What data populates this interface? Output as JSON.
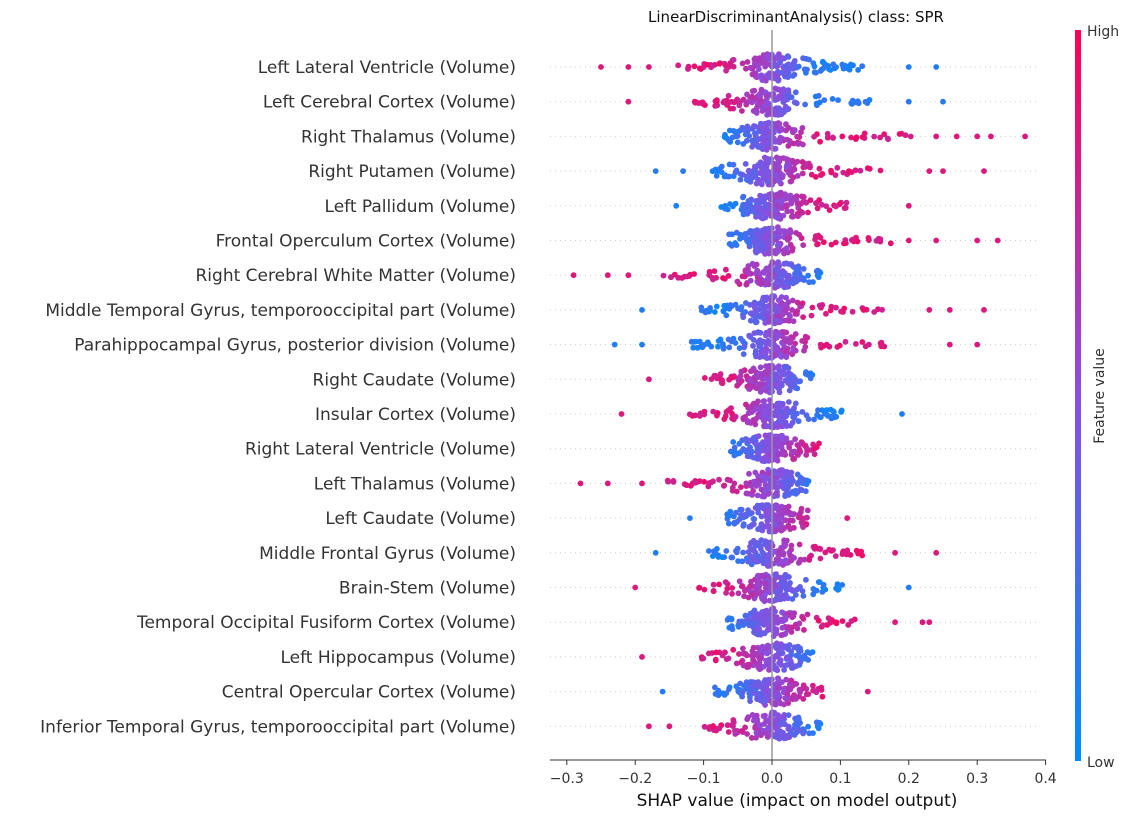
{
  "chart_data": {
    "type": "scatter",
    "title": "LinearDiscriminantAnalysis() class: SPR",
    "xlabel": "SHAP value (impact on model output)",
    "xlim": [
      -0.33,
      0.4
    ],
    "xticks": [
      -0.3,
      -0.2,
      -0.1,
      0.0,
      0.1,
      0.2,
      0.3,
      0.4
    ],
    "xtick_labels": [
      "−0.3",
      "−0.2",
      "−0.1",
      "0.0",
      "0.1",
      "0.2",
      "0.3",
      "0.4"
    ],
    "colorbar": {
      "label": "Feature value",
      "high_label": "High",
      "low_label": "Low",
      "low_color": "#008bfb",
      "high_color": "#ff0052"
    },
    "zero_line_color": "#999999",
    "features": [
      {
        "name": "Left Lateral Ventricle (Volume)",
        "neg_min": -0.25,
        "pos_max": 0.24,
        "neg_color": 0.85,
        "pos_color": 0.12,
        "outliers": [
          -0.25,
          -0.21,
          -0.18,
          0.2,
          0.24
        ]
      },
      {
        "name": "Left Cerebral Cortex  (Volume)",
        "neg_min": -0.21,
        "pos_max": 0.26,
        "neg_color": 0.85,
        "pos_color": 0.15,
        "outliers": [
          -0.21,
          0.2,
          0.25
        ]
      },
      {
        "name": "Right Thalamus (Volume)",
        "neg_min": -0.13,
        "pos_max": 0.37,
        "neg_color": 0.1,
        "pos_color": 0.85,
        "outliers": [
          0.24,
          0.27,
          0.3,
          0.32,
          0.37
        ]
      },
      {
        "name": "Right Putamen (Volume)",
        "neg_min": -0.17,
        "pos_max": 0.31,
        "neg_color": 0.15,
        "pos_color": 0.85,
        "outliers": [
          -0.17,
          -0.13,
          0.23,
          0.25,
          0.31
        ]
      },
      {
        "name": "Left Pallidum (Volume)",
        "neg_min": -0.14,
        "pos_max": 0.2,
        "neg_color": 0.1,
        "pos_color": 0.85,
        "outliers": [
          -0.14,
          0.2
        ]
      },
      {
        "name": "Frontal Operculum Cortex (Volume)",
        "neg_min": -0.12,
        "pos_max": 0.33,
        "neg_color": 0.1,
        "pos_color": 0.85,
        "outliers": [
          0.2,
          0.24,
          0.3,
          0.33
        ]
      },
      {
        "name": "Right Cerebral White Matter (Volume)",
        "neg_min": -0.29,
        "pos_max": 0.13,
        "neg_color": 0.85,
        "pos_color": 0.12,
        "outliers": [
          -0.29,
          -0.24,
          -0.21
        ]
      },
      {
        "name": "Middle Temporal Gyrus, temporooccipital part (Volume)",
        "neg_min": -0.19,
        "pos_max": 0.31,
        "neg_color": 0.12,
        "pos_color": 0.85,
        "outliers": [
          -0.19,
          0.23,
          0.26,
          0.31
        ]
      },
      {
        "name": "Parahippocampal Gyrus, posterior division (Volume)",
        "neg_min": -0.23,
        "pos_max": 0.3,
        "neg_color": 0.12,
        "pos_color": 0.85,
        "outliers": [
          -0.23,
          -0.19,
          0.26,
          0.3
        ]
      },
      {
        "name": "Right Caudate (Volume)",
        "neg_min": -0.18,
        "pos_max": 0.11,
        "neg_color": 0.85,
        "pos_color": 0.12,
        "outliers": [
          -0.18
        ]
      },
      {
        "name": "Insular Cortex (Volume)",
        "neg_min": -0.22,
        "pos_max": 0.19,
        "neg_color": 0.85,
        "pos_color": 0.12,
        "outliers": [
          -0.22,
          0.19
        ]
      },
      {
        "name": "Right Lateral Ventricle (Volume)",
        "neg_min": -0.11,
        "pos_max": 0.13,
        "neg_color": 0.12,
        "pos_color": 0.85,
        "outliers": []
      },
      {
        "name": "Left Thalamus (Volume)",
        "neg_min": -0.28,
        "pos_max": 0.1,
        "neg_color": 0.85,
        "pos_color": 0.12,
        "outliers": [
          -0.28,
          -0.24,
          -0.19
        ]
      },
      {
        "name": "Left Caudate (Volume)",
        "neg_min": -0.12,
        "pos_max": 0.11,
        "neg_color": 0.12,
        "pos_color": 0.85,
        "outliers": [
          -0.12,
          0.11
        ]
      },
      {
        "name": "Middle Frontal Gyrus (Volume)",
        "neg_min": -0.17,
        "pos_max": 0.24,
        "neg_color": 0.12,
        "pos_color": 0.85,
        "outliers": [
          -0.17,
          0.18,
          0.24
        ]
      },
      {
        "name": "Brain-Stem (Volume)",
        "neg_min": -0.2,
        "pos_max": 0.2,
        "neg_color": 0.85,
        "pos_color": 0.12,
        "outliers": [
          -0.2,
          0.2
        ]
      },
      {
        "name": "Temporal Occipital Fusiform Cortex (Volume)",
        "neg_min": -0.12,
        "pos_max": 0.23,
        "neg_color": 0.12,
        "pos_color": 0.85,
        "outliers": [
          0.18,
          0.22,
          0.23
        ]
      },
      {
        "name": "Left Hippocampus (Volume)",
        "neg_min": -0.19,
        "pos_max": 0.11,
        "neg_color": 0.85,
        "pos_color": 0.12,
        "outliers": [
          -0.19
        ]
      },
      {
        "name": "Central Opercular Cortex (Volume)",
        "neg_min": -0.16,
        "pos_max": 0.14,
        "neg_color": 0.12,
        "pos_color": 0.85,
        "outliers": [
          -0.16,
          0.14
        ]
      },
      {
        "name": "Inferior Temporal Gyrus, temporooccipital part (Volume)",
        "neg_min": -0.18,
        "pos_max": 0.13,
        "neg_color": 0.85,
        "pos_color": 0.12,
        "outliers": [
          -0.18,
          -0.15
        ]
      }
    ]
  }
}
